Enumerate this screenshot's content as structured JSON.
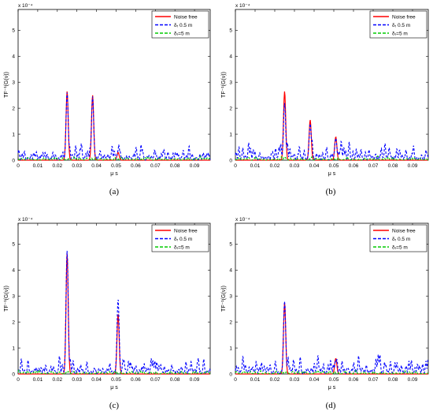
{
  "chart_data": [
    {
      "type": "line",
      "caption": "(a)",
      "xlabel": "μ s",
      "ylabel": "TF⁻¹(G(ν))",
      "exponent_label": "x 10⁻⁴",
      "xlim": [
        0,
        0.098
      ],
      "ylim": [
        0,
        5.8
      ],
      "xticks": [
        "0",
        "0.01",
        "0.02",
        "0.03",
        "0.04",
        "0.05",
        "0.06",
        "0.07",
        "0.08",
        "0.09"
      ],
      "yticks": [
        "0",
        "1",
        "2",
        "3",
        "4",
        "5"
      ],
      "legend_position": "top-right",
      "series": [
        {
          "name": "Noise free",
          "color": "#ff0000",
          "style": "solid",
          "peaks": [
            [
              0.025,
              2.65
            ],
            [
              0.038,
              2.5
            ],
            [
              0.051,
              0.3
            ]
          ]
        },
        {
          "name": "δᵣ 0.5 m",
          "color": "#0000ff",
          "style": "dashed",
          "peaks": [
            [
              0.025,
              2.6
            ],
            [
              0.038,
              2.45
            ],
            [
              0.051,
              0.35
            ]
          ],
          "noise_level": 0.4
        },
        {
          "name": "δᵣ=5 m",
          "color": "#00cc00",
          "style": "dashed",
          "peaks": [],
          "noise_level": 0.1
        }
      ]
    },
    {
      "type": "line",
      "caption": "(b)",
      "xlabel": "μ s",
      "ylabel": "TF⁻¹(G(ν))",
      "exponent_label": "x 10⁻⁴",
      "xlim": [
        0,
        0.098
      ],
      "ylim": [
        0,
        5.8
      ],
      "xticks": [
        "0",
        "0.01",
        "0.02",
        "0.03",
        "0.04",
        "0.05",
        "0.06",
        "0.07",
        "0.08",
        "0.09"
      ],
      "yticks": [
        "0",
        "1",
        "2",
        "3",
        "4",
        "5"
      ],
      "legend_position": "top-right",
      "series": [
        {
          "name": "Noise free",
          "color": "#ff0000",
          "style": "solid",
          "peaks": [
            [
              0.025,
              2.65
            ],
            [
              0.038,
              1.55
            ],
            [
              0.051,
              0.9
            ]
          ]
        },
        {
          "name": "δᵣ 0.5 m",
          "color": "#0000ff",
          "style": "dashed",
          "peaks": [
            [
              0.025,
              2.2
            ],
            [
              0.038,
              1.4
            ],
            [
              0.051,
              0.85
            ]
          ],
          "noise_level": 0.5
        },
        {
          "name": "δᵣ=5 m",
          "color": "#00cc00",
          "style": "dashed",
          "peaks": [],
          "noise_level": 0.1
        }
      ]
    },
    {
      "type": "line",
      "caption": "(c)",
      "xlabel": "μ s",
      "ylabel": "TF⁻¹(G(ν))",
      "exponent_label": "x 10⁻⁴",
      "xlim": [
        0,
        0.098
      ],
      "ylim": [
        0,
        5.8
      ],
      "xticks": [
        "0",
        "0.01",
        "0.02",
        "0.03",
        "0.04",
        "0.05",
        "0.06",
        "0.07",
        "0.08",
        "0.09"
      ],
      "yticks": [
        "0",
        "1",
        "2",
        "3",
        "4",
        "5"
      ],
      "legend_position": "top-right",
      "series": [
        {
          "name": "Noise free",
          "color": "#ff0000",
          "style": "solid",
          "peaks": [
            [
              0.025,
              4.65
            ],
            [
              0.051,
              2.3
            ]
          ]
        },
        {
          "name": "δᵣ 0.5 m",
          "color": "#0000ff",
          "style": "dashed",
          "peaks": [
            [
              0.025,
              4.75
            ],
            [
              0.051,
              2.9
            ]
          ],
          "noise_level": 0.45
        },
        {
          "name": "δᵣ=5 m",
          "color": "#00cc00",
          "style": "dashed",
          "peaks": [],
          "noise_level": 0.1
        }
      ]
    },
    {
      "type": "line",
      "caption": "(d)",
      "xlabel": "μ s",
      "ylabel": "TF⁻¹(G(ν))",
      "exponent_label": "x 10⁻⁴",
      "xlim": [
        0,
        0.098
      ],
      "ylim": [
        0,
        5.8
      ],
      "xticks": [
        "0",
        "0.01",
        "0.02",
        "0.03",
        "0.04",
        "0.05",
        "0.06",
        "0.07",
        "0.08",
        "0.09"
      ],
      "yticks": [
        "0",
        "1",
        "2",
        "3",
        "4",
        "5"
      ],
      "legend_position": "top-right",
      "series": [
        {
          "name": "Noise free",
          "color": "#ff0000",
          "style": "solid",
          "peaks": [
            [
              0.025,
              2.75
            ],
            [
              0.051,
              0.6
            ]
          ]
        },
        {
          "name": "δᵣ 0.5 m",
          "color": "#0000ff",
          "style": "dashed",
          "peaks": [
            [
              0.025,
              2.8
            ],
            [
              0.051,
              0.55
            ]
          ],
          "noise_level": 0.5
        },
        {
          "name": "δᵣ=5 m",
          "color": "#00cc00",
          "style": "dashed",
          "peaks": [],
          "noise_level": 0.1
        }
      ]
    }
  ]
}
